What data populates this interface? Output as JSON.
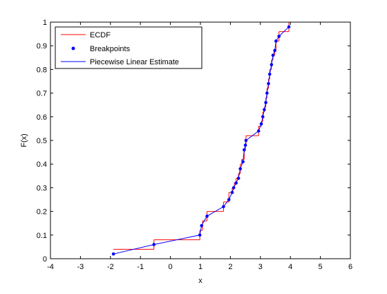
{
  "chart_data": {
    "type": "line",
    "title": "",
    "xlabel": "x",
    "ylabel": "F(x)",
    "xlim": [
      -4,
      6
    ],
    "ylim": [
      0,
      1
    ],
    "xticks": [
      -4,
      -3,
      -2,
      -1,
      0,
      1,
      2,
      3,
      4,
      5,
      6
    ],
    "yticks": [
      0,
      0.1,
      0.2,
      0.3,
      0.4,
      0.5,
      0.6,
      0.7,
      0.8,
      0.9,
      1
    ],
    "grid": false,
    "legend_position": "top-left",
    "series": [
      {
        "name": "ECDF",
        "kind": "stairs",
        "color": "#ff0000",
        "x": [
          -1.9,
          -0.55,
          0.98,
          1.07,
          1.22,
          1.77,
          1.95,
          2.06,
          2.13,
          2.19,
          2.27,
          2.33,
          2.38,
          2.46,
          2.5,
          2.52,
          2.94,
          3.03,
          3.08,
          3.13,
          3.18,
          3.22,
          3.27,
          3.31,
          3.37,
          3.42,
          3.48,
          3.52,
          3.62,
          3.95
        ],
        "y": [
          0.04,
          0.08,
          0.12,
          0.16,
          0.2,
          0.24,
          0.28,
          0.3,
          0.32,
          0.34,
          0.36,
          0.4,
          0.42,
          0.46,
          0.48,
          0.52,
          0.56,
          0.58,
          0.62,
          0.64,
          0.68,
          0.72,
          0.76,
          0.8,
          0.84,
          0.86,
          0.88,
          0.92,
          0.96,
          1.0
        ]
      },
      {
        "name": "Breakpoints",
        "kind": "markers",
        "color": "#0000ff",
        "x": [
          -1.9,
          -0.55,
          0.98,
          1.04,
          1.22,
          1.77,
          1.95,
          2.06,
          2.11,
          2.19,
          2.27,
          2.33,
          2.42,
          2.46,
          2.5,
          2.52,
          2.94,
          3.03,
          3.08,
          3.13,
          3.18,
          3.22,
          3.27,
          3.31,
          3.37,
          3.42,
          3.48,
          3.52,
          3.62,
          3.95
        ],
        "y": [
          0.02,
          0.06,
          0.1,
          0.14,
          0.18,
          0.22,
          0.25,
          0.28,
          0.3,
          0.32,
          0.34,
          0.38,
          0.41,
          0.46,
          0.48,
          0.5,
          0.54,
          0.57,
          0.6,
          0.63,
          0.66,
          0.7,
          0.74,
          0.78,
          0.82,
          0.86,
          0.88,
          0.92,
          0.94,
          0.98
        ]
      },
      {
        "name": "Piecewise Linear Estimate",
        "kind": "line",
        "color": "#0000ff",
        "x": [
          -1.9,
          -0.55,
          0.98,
          1.04,
          1.22,
          1.77,
          1.95,
          2.06,
          2.11,
          2.19,
          2.27,
          2.33,
          2.42,
          2.46,
          2.5,
          2.52,
          2.94,
          3.03,
          3.08,
          3.13,
          3.18,
          3.22,
          3.27,
          3.31,
          3.37,
          3.42,
          3.48,
          3.52,
          3.62,
          3.95
        ],
        "y": [
          0.02,
          0.06,
          0.1,
          0.14,
          0.18,
          0.22,
          0.25,
          0.28,
          0.3,
          0.32,
          0.34,
          0.38,
          0.41,
          0.46,
          0.48,
          0.5,
          0.54,
          0.57,
          0.6,
          0.63,
          0.66,
          0.7,
          0.74,
          0.78,
          0.82,
          0.86,
          0.88,
          0.92,
          0.94,
          0.98
        ]
      }
    ]
  }
}
